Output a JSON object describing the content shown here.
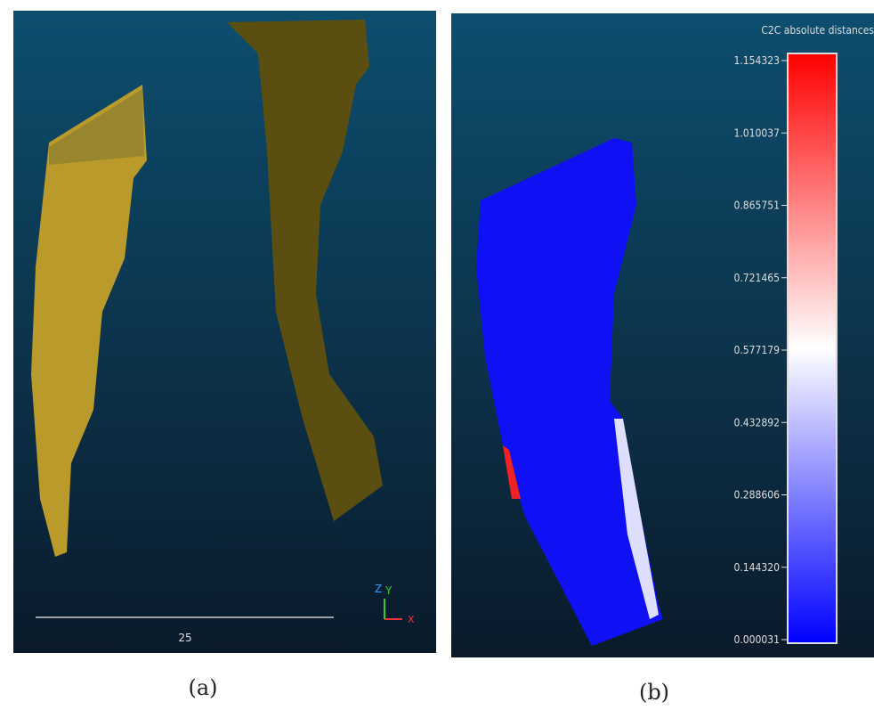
{
  "panel_a": {
    "scale_label": "25",
    "axes": {
      "z": "Z",
      "y": "Y",
      "x": "X"
    },
    "caption": "(a)"
  },
  "panel_b": {
    "colorbar": {
      "title": "C2C absolute distances",
      "labels": [
        "1.154323",
        "1.010037",
        "0.865751",
        "0.721465",
        "0.577179",
        "0.432892",
        "0.288606",
        "0.144320",
        "0.000031"
      ]
    },
    "caption": "(b)"
  }
}
